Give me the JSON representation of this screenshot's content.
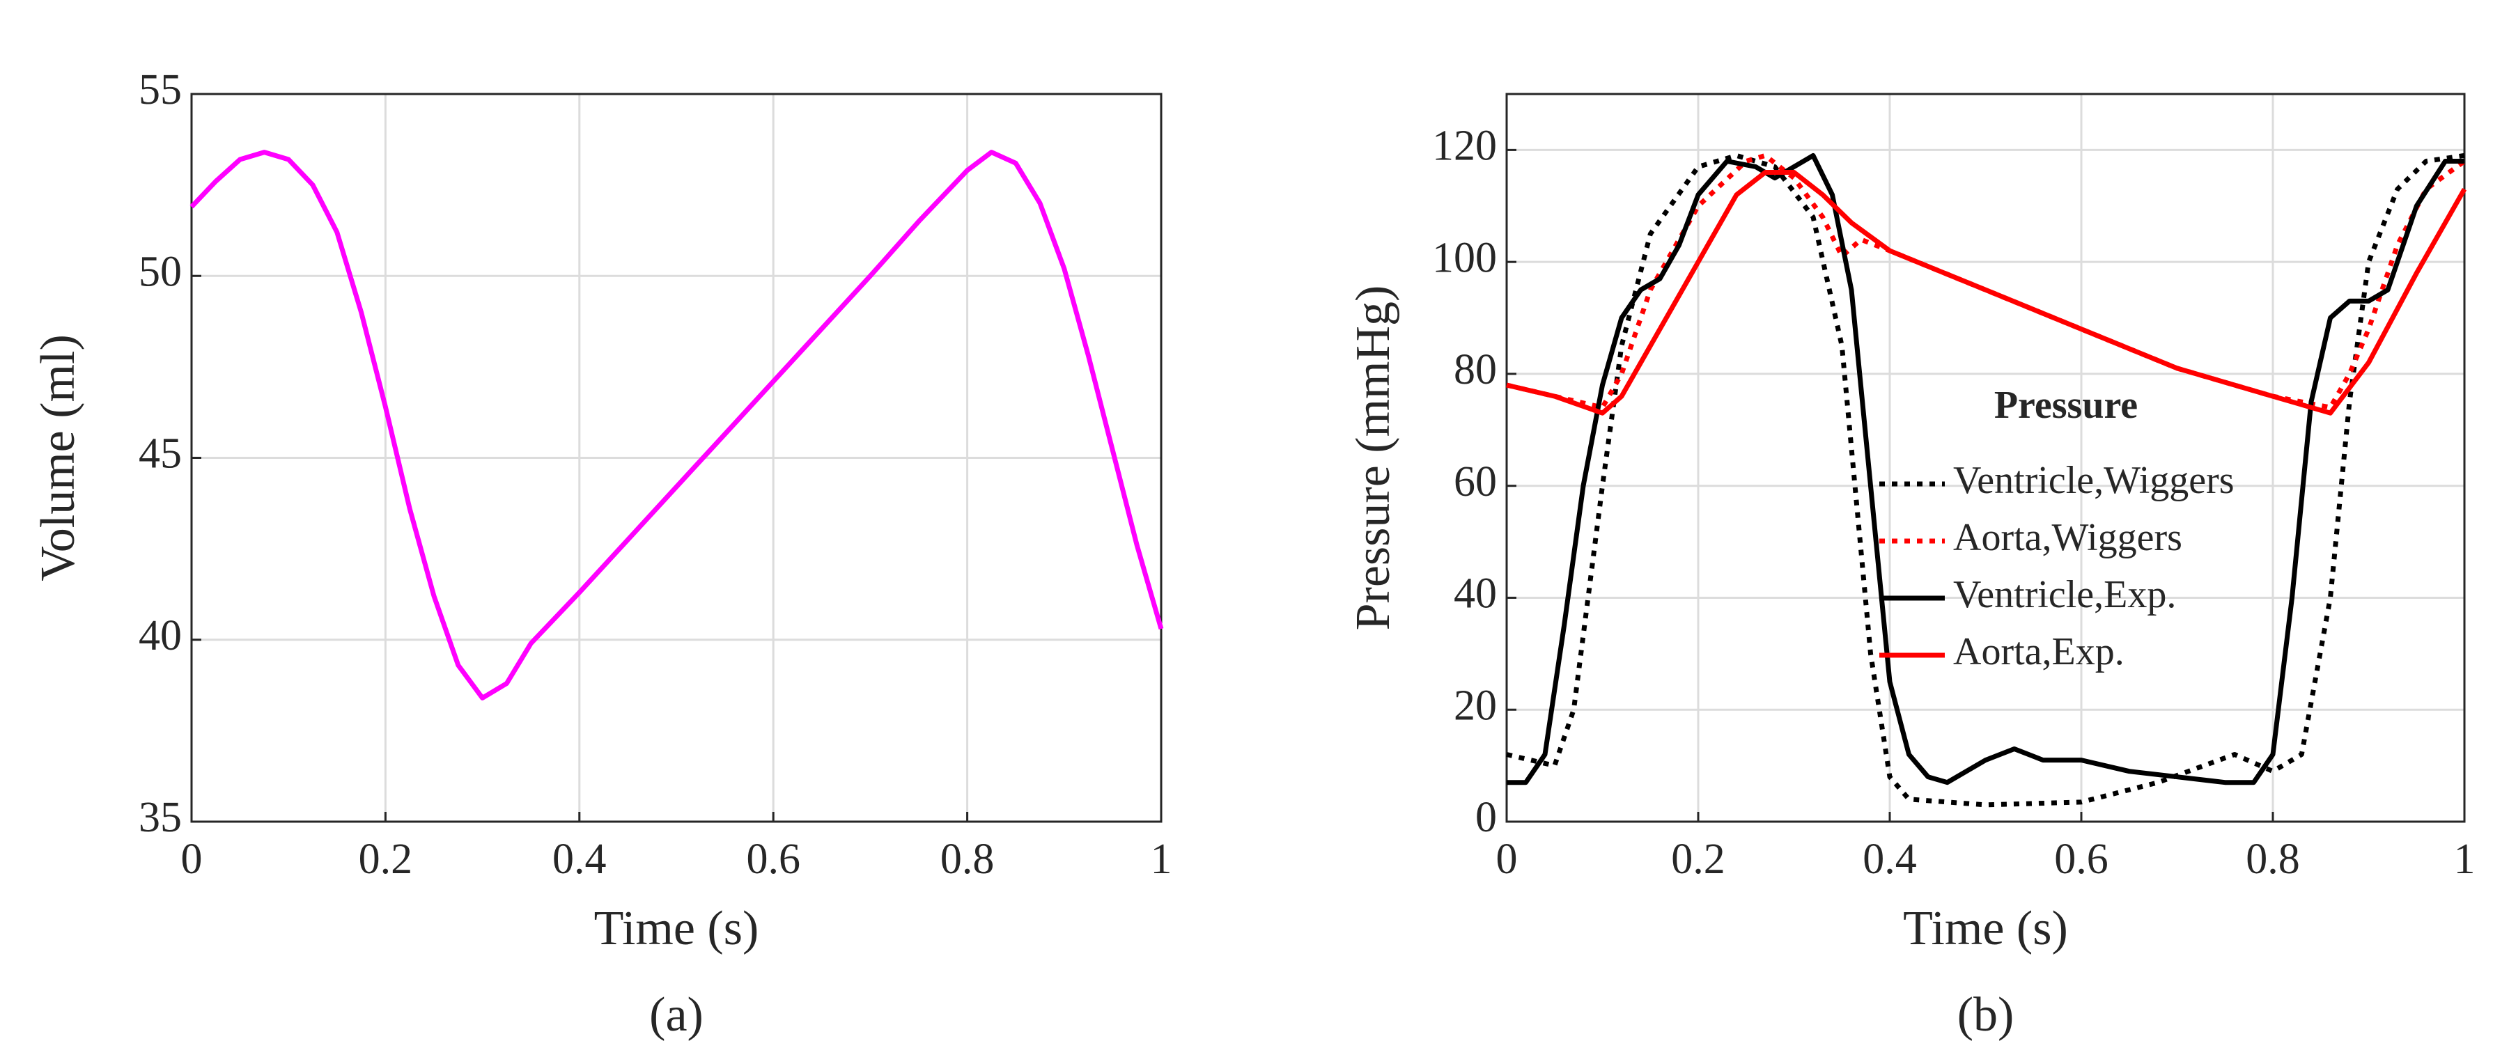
{
  "chart_data": [
    {
      "type": "line",
      "panel": "(a)",
      "xlabel": "Time (s)",
      "ylabel": "Volume (ml)",
      "xlim": [
        0,
        1
      ],
      "ylim": [
        35,
        55
      ],
      "xticks": [
        0,
        0.2,
        0.4,
        0.6,
        0.8,
        1
      ],
      "yticks": [
        35,
        40,
        45,
        50,
        55
      ],
      "grid": true,
      "series": [
        {
          "color": "#ff00ff",
          "style": "solid",
          "x": [
            0,
            0.025,
            0.05,
            0.075,
            0.1,
            0.125,
            0.15,
            0.175,
            0.2,
            0.225,
            0.25,
            0.275,
            0.3,
            0.325,
            0.35,
            0.4,
            0.5,
            0.6,
            0.7,
            0.75,
            0.8,
            0.825,
            0.85,
            0.875,
            0.9,
            0.925,
            0.95,
            0.975,
            1
          ],
          "values": [
            51.9,
            52.6,
            53.2,
            53.4,
            53.2,
            52.5,
            51.2,
            49.0,
            46.4,
            43.6,
            41.2,
            39.3,
            38.4,
            38.8,
            39.9,
            41.3,
            44.2,
            47.1,
            50.0,
            51.5,
            52.9,
            53.4,
            53.1,
            52.0,
            50.2,
            47.8,
            45.2,
            42.6,
            40.3
          ]
        }
      ]
    },
    {
      "type": "line",
      "panel": "(b)",
      "xlabel": "Time (s)",
      "ylabel": "Pressure (mmHg)",
      "xlim": [
        0,
        1
      ],
      "ylim": [
        0,
        130
      ],
      "xticks": [
        0,
        0.2,
        0.4,
        0.6,
        0.8,
        1
      ],
      "yticks": [
        0,
        20,
        40,
        60,
        80,
        100,
        120
      ],
      "grid": true,
      "legend_title": "Pressure",
      "legend_position": "right",
      "series": [
        {
          "name": "Ventricle,Wiggers",
          "color": "#000000",
          "style": "dotted",
          "x": [
            0,
            0.05,
            0.07,
            0.1,
            0.12,
            0.15,
            0.2,
            0.24,
            0.28,
            0.32,
            0.35,
            0.38,
            0.4,
            0.42,
            0.5,
            0.6,
            0.68,
            0.76,
            0.8,
            0.83,
            0.86,
            0.88,
            0.9,
            0.93,
            0.96,
            1
          ],
          "values": [
            12,
            10,
            20,
            60,
            85,
            105,
            117,
            119,
            117,
            108,
            85,
            30,
            8,
            4,
            3,
            3.5,
            7,
            12,
            9,
            12,
            40,
            75,
            100,
            113,
            118,
            119
          ]
        },
        {
          "name": "Aorta,Wiggers",
          "color": "#ff0000",
          "style": "dotted",
          "x": [
            0,
            0.05,
            0.1,
            0.12,
            0.15,
            0.2,
            0.25,
            0.27,
            0.3,
            0.33,
            0.35,
            0.37,
            0.4,
            0.5,
            0.6,
            0.7,
            0.8,
            0.86,
            0.88,
            0.9,
            0.93,
            0.96,
            1
          ],
          "values": [
            78,
            76,
            74,
            80,
            95,
            110,
            118,
            119,
            115,
            108,
            101,
            104,
            102,
            95,
            88,
            81,
            76,
            74,
            80,
            88,
            103,
            113,
            118
          ]
        },
        {
          "name": "Ventricle,Exp.",
          "color": "#000000",
          "style": "solid",
          "x": [
            0,
            0.02,
            0.04,
            0.06,
            0.08,
            0.1,
            0.12,
            0.14,
            0.16,
            0.18,
            0.2,
            0.23,
            0.26,
            0.28,
            0.3,
            0.32,
            0.34,
            0.36,
            0.38,
            0.4,
            0.42,
            0.44,
            0.46,
            0.5,
            0.53,
            0.56,
            0.6,
            0.65,
            0.7,
            0.75,
            0.78,
            0.8,
            0.82,
            0.84,
            0.86,
            0.88,
            0.9,
            0.92,
            0.95,
            0.98,
            1
          ],
          "values": [
            7,
            7,
            12,
            35,
            60,
            78,
            90,
            95,
            97,
            103,
            112,
            118,
            117,
            115,
            117,
            119,
            112,
            95,
            60,
            25,
            12,
            8,
            7,
            11,
            13,
            11,
            11,
            9,
            8,
            7,
            7,
            12,
            40,
            75,
            90,
            93,
            93,
            95,
            110,
            118,
            118
          ]
        },
        {
          "name": "Aorta,Exp.",
          "color": "#ff0000",
          "style": "solid",
          "x": [
            0,
            0.05,
            0.1,
            0.12,
            0.15,
            0.2,
            0.24,
            0.27,
            0.3,
            0.33,
            0.36,
            0.4,
            0.5,
            0.6,
            0.7,
            0.8,
            0.86,
            0.9,
            0.95,
            1
          ],
          "values": [
            78,
            76,
            73,
            76,
            85,
            100,
            112,
            116,
            116,
            112,
            107,
            102,
            95,
            88,
            81,
            76,
            73,
            82,
            98,
            113
          ]
        }
      ]
    }
  ]
}
